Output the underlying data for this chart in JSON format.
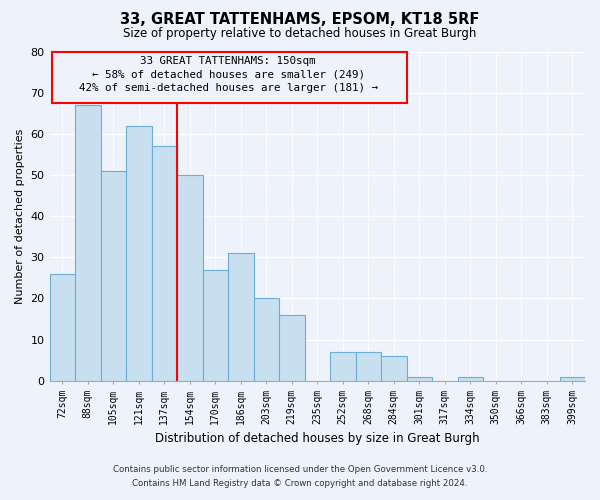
{
  "title": "33, GREAT TATTENHAMS, EPSOM, KT18 5RF",
  "subtitle": "Size of property relative to detached houses in Great Burgh",
  "xlabel": "Distribution of detached houses by size in Great Burgh",
  "ylabel": "Number of detached properties",
  "bin_labels": [
    "72sqm",
    "88sqm",
    "105sqm",
    "121sqm",
    "137sqm",
    "154sqm",
    "170sqm",
    "186sqm",
    "203sqm",
    "219sqm",
    "235sqm",
    "252sqm",
    "268sqm",
    "284sqm",
    "301sqm",
    "317sqm",
    "334sqm",
    "350sqm",
    "366sqm",
    "383sqm",
    "399sqm"
  ],
  "bar_heights": [
    26,
    67,
    51,
    62,
    57,
    50,
    27,
    31,
    20,
    16,
    0,
    7,
    7,
    6,
    1,
    0,
    1,
    0,
    0,
    0,
    1
  ],
  "bar_color": "#c8dff0",
  "bar_edge_color": "#6baed6",
  "annotation_title": "33 GREAT TATTENHAMS: 150sqm",
  "annotation_line1": "← 58% of detached houses are smaller (249)",
  "annotation_line2": "42% of semi-detached houses are larger (181) →",
  "ylim": [
    0,
    80
  ],
  "yticks": [
    0,
    10,
    20,
    30,
    40,
    50,
    60,
    70,
    80
  ],
  "footnote1": "Contains HM Land Registry data © Crown copyright and database right 2024.",
  "footnote2": "Contains public sector information licensed under the Open Government Licence v3.0.",
  "background_color": "#eef2fb"
}
